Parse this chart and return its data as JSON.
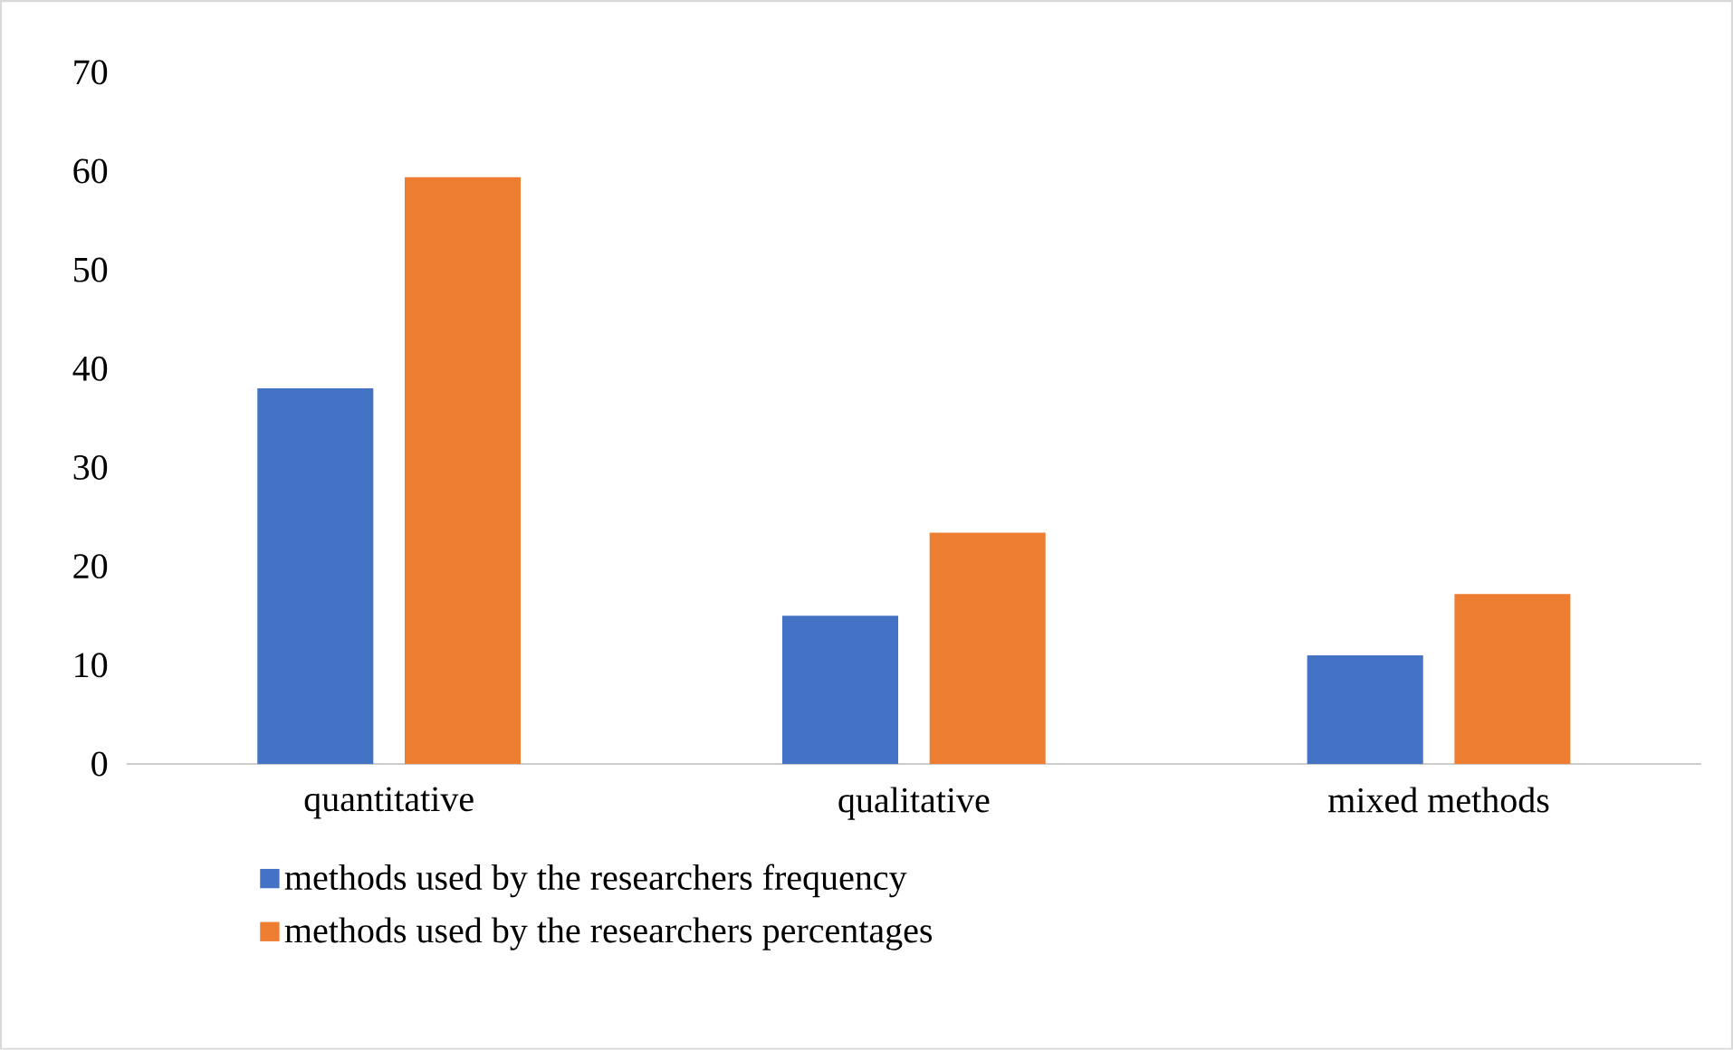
{
  "chart_data": {
    "type": "bar",
    "categories": [
      "quantitative",
      "qualitative",
      "mixed methods"
    ],
    "series": [
      {
        "name": "methods used by the researchers frequency",
        "color": "#4472c4",
        "values": [
          38,
          15,
          11
        ]
      },
      {
        "name": "methods used by the researchers percentages",
        "color": "#ed7d31",
        "values": [
          59.4,
          23.4,
          17.2
        ]
      }
    ],
    "ylim": [
      0,
      70
    ],
    "yticks": [
      0,
      10,
      20,
      30,
      40,
      50,
      60,
      70
    ],
    "grid": false,
    "legend": "bottom"
  }
}
